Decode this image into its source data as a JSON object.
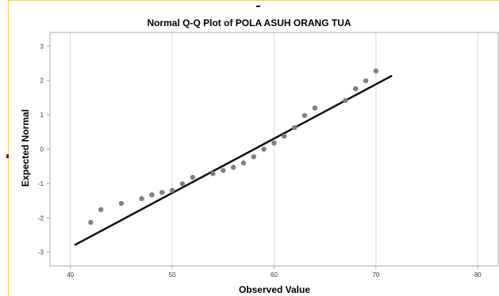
{
  "chart_data": {
    "type": "scatter",
    "title": "Normal Q-Q Plot of POLA ASUH ORANG TUA",
    "xlabel": "Observed Value",
    "ylabel": "Expected Normal",
    "xlim": [
      38,
      82
    ],
    "ylim": [
      -3.4,
      3.4
    ],
    "xticks": [
      "40",
      "50",
      "60",
      "70",
      "80"
    ],
    "yticks": [
      "3",
      "2",
      "1",
      "0",
      "-1",
      "-2",
      "-3"
    ],
    "grid": true,
    "points": [
      {
        "x": 42,
        "y": -2.13
      },
      {
        "x": 43,
        "y": -1.76
      },
      {
        "x": 45,
        "y": -1.58
      },
      {
        "x": 47,
        "y": -1.44
      },
      {
        "x": 48,
        "y": -1.33
      },
      {
        "x": 49,
        "y": -1.26
      },
      {
        "x": 50,
        "y": -1.2
      },
      {
        "x": 51,
        "y": -1.01
      },
      {
        "x": 52,
        "y": -0.82
      },
      {
        "x": 54,
        "y": -0.71
      },
      {
        "x": 55,
        "y": -0.62
      },
      {
        "x": 56,
        "y": -0.53
      },
      {
        "x": 57,
        "y": -0.4
      },
      {
        "x": 58,
        "y": -0.22
      },
      {
        "x": 59,
        "y": 0.0
      },
      {
        "x": 60,
        "y": 0.18
      },
      {
        "x": 61,
        "y": 0.38
      },
      {
        "x": 62,
        "y": 0.63
      },
      {
        "x": 63,
        "y": 0.98
      },
      {
        "x": 64,
        "y": 1.2
      },
      {
        "x": 67,
        "y": 1.42
      },
      {
        "x": 68,
        "y": 1.76
      },
      {
        "x": 69,
        "y": 1.99
      },
      {
        "x": 70,
        "y": 2.28
      }
    ],
    "reference_line": [
      {
        "x": 40.5,
        "y": -2.78
      },
      {
        "x": 71.5,
        "y": 2.13
      }
    ],
    "colors": {
      "points": "#808080",
      "line": "#111111",
      "grid": "#d9d9d9",
      "frame": "#a8a8a8"
    }
  }
}
